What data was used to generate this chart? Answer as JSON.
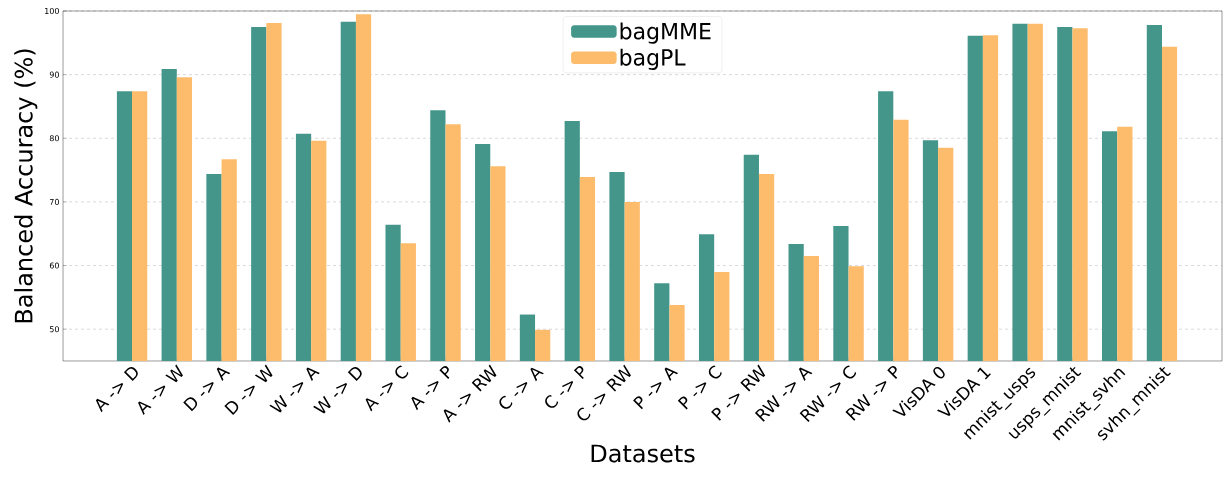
{
  "chart_data": {
    "type": "bar",
    "xlabel": "Datasets",
    "ylabel": "Balanced Accuracy (%)",
    "categories": [
      "A -> D",
      "A -> W",
      "D -> A",
      "D -> W",
      "W -> A",
      "W -> D",
      "A -> C",
      "A -> P",
      "A -> RW",
      "C -> A",
      "C -> P",
      "C -> RW",
      "P -> A",
      "P -> C",
      "P -> RW",
      "RW -> A",
      "RW -> C",
      "RW -> P",
      "VisDA 0",
      "VisDA 1",
      "mnist_usps",
      "usps_mnist",
      "mnist_svhn",
      "svhn_mnist"
    ],
    "series": [
      {
        "name": "bagMME",
        "color": "#44968a",
        "values": [
          87.4,
          90.9,
          74.4,
          97.5,
          80.7,
          98.3,
          66.4,
          84.4,
          79.1,
          52.3,
          82.7,
          74.7,
          57.2,
          64.9,
          77.4,
          63.4,
          66.2,
          87.4,
          79.7,
          96.1,
          98.0,
          97.5,
          81.1,
          97.8
        ]
      },
      {
        "name": "bagPL",
        "color": "#fdbb6c",
        "values": [
          87.4,
          89.6,
          76.7,
          98.1,
          79.6,
          99.5,
          63.5,
          82.2,
          75.6,
          49.9,
          73.9,
          70.0,
          53.8,
          59.0,
          74.4,
          61.5,
          59.9,
          82.9,
          78.5,
          96.2,
          98.0,
          97.3,
          81.8,
          94.4
        ]
      }
    ],
    "ylim": [
      45,
      100
    ],
    "yticks": [
      50,
      60,
      70,
      80,
      90,
      100
    ],
    "grid": "y",
    "legend": "top"
  }
}
